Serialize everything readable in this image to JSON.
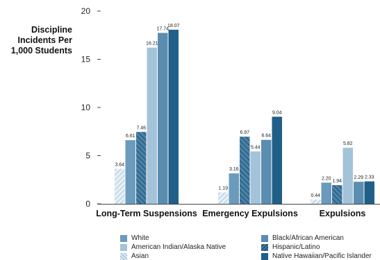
{
  "chart_data": {
    "type": "bar",
    "title": "",
    "ylabel": "Discipline\nIncidents Per\n1,000 Students",
    "xlabel": "",
    "ylim": [
      0,
      20
    ],
    "yticks": [
      0,
      5,
      10,
      15,
      20
    ],
    "grid": false,
    "legend_position": "bottom",
    "categories": [
      "Long-Term Suspensions",
      "Emergency Expulsions",
      "Expulsions"
    ],
    "series": [
      {
        "name": "Asian",
        "values": [
          3.64,
          1.19,
          0.44
        ],
        "color": "#c9dce8",
        "pattern": "light-diagonal"
      },
      {
        "name": "White",
        "values": [
          6.61,
          3.16,
          2.2
        ],
        "color": "#6a9bbd",
        "pattern": "solid"
      },
      {
        "name": "Hispanic/Latino",
        "values": [
          7.46,
          6.97,
          1.94
        ],
        "color": "#2f6b91",
        "pattern": "dark-diagonal"
      },
      {
        "name": "American Indian/Alaska Native",
        "values": [
          16.21,
          5.44,
          5.82
        ],
        "color": "#a3c3d9",
        "pattern": "solid"
      },
      {
        "name": "Black/African American",
        "values": [
          17.74,
          6.64,
          2.29
        ],
        "color": "#5b8db0",
        "pattern": "solid"
      },
      {
        "name": "Native Hawaiian/Pacific Islander",
        "values": [
          18.07,
          9.04,
          2.33
        ],
        "color": "#1f5f88",
        "pattern": "solid"
      }
    ],
    "data_labels": [
      [
        "3.64",
        "6.61",
        "7.46",
        "16.21",
        "17.74",
        "18.07"
      ],
      [
        "1.19",
        "3.16",
        "6.97",
        "5.44",
        "6.64",
        "9.04"
      ],
      [
        "0.44",
        "2.20",
        "1.94",
        "5.82",
        "2.29",
        "2.33"
      ]
    ],
    "legend_order": [
      "White",
      "Black/African American",
      "American Indian/Alaska Native",
      "Hispanic/Latino",
      "Asian",
      "Native Hawaiian/Pacific Islander"
    ]
  }
}
